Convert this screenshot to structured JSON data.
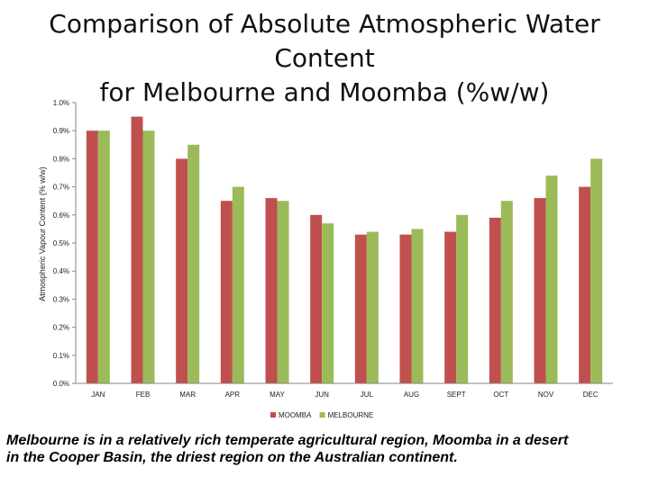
{
  "title": {
    "line1": "Comparison of Absolute Atmospheric Water Content",
    "line2": "for Melbourne and Moomba (%w/w)"
  },
  "caption": {
    "line1": "Melbourne is in a relatively rich temperate agricultural region, Moomba in a desert",
    "line2": "in the Cooper Basin, the driest region on the Australian continent."
  },
  "chart_data": {
    "type": "bar",
    "ylabel": "Atmospheric Vapour Content (% w/w)",
    "xlabel": "",
    "ylim": [
      0,
      1.0
    ],
    "yticks": [
      0,
      0.1,
      0.2,
      0.3,
      0.4,
      0.5,
      0.6,
      0.7,
      0.8,
      0.9,
      1.0
    ],
    "ytick_labels": [
      "0.0%",
      "0.1%",
      "0.2%",
      "0.3%",
      "0.4%",
      "0.5%",
      "0.6%",
      "0.7%",
      "0.8%",
      "0.9%",
      "1.0%"
    ],
    "grid": false,
    "legend_position": "bottom",
    "categories": [
      "JAN",
      "FEB",
      "MAR",
      "APR",
      "MAY",
      "JUN",
      "JUL",
      "AUG",
      "SEPT",
      "OCT",
      "NOV",
      "DEC"
    ],
    "series": [
      {
        "name": "MOOMBA",
        "color": "#c0504d",
        "values": [
          0.9,
          0.95,
          0.8,
          0.65,
          0.66,
          0.6,
          0.53,
          0.53,
          0.54,
          0.59,
          0.66,
          0.7
        ]
      },
      {
        "name": "MELBOURNE",
        "color": "#9bbb59",
        "values": [
          0.9,
          0.9,
          0.85,
          0.7,
          0.65,
          0.57,
          0.54,
          0.55,
          0.6,
          0.65,
          0.74,
          0.8
        ]
      }
    ]
  }
}
